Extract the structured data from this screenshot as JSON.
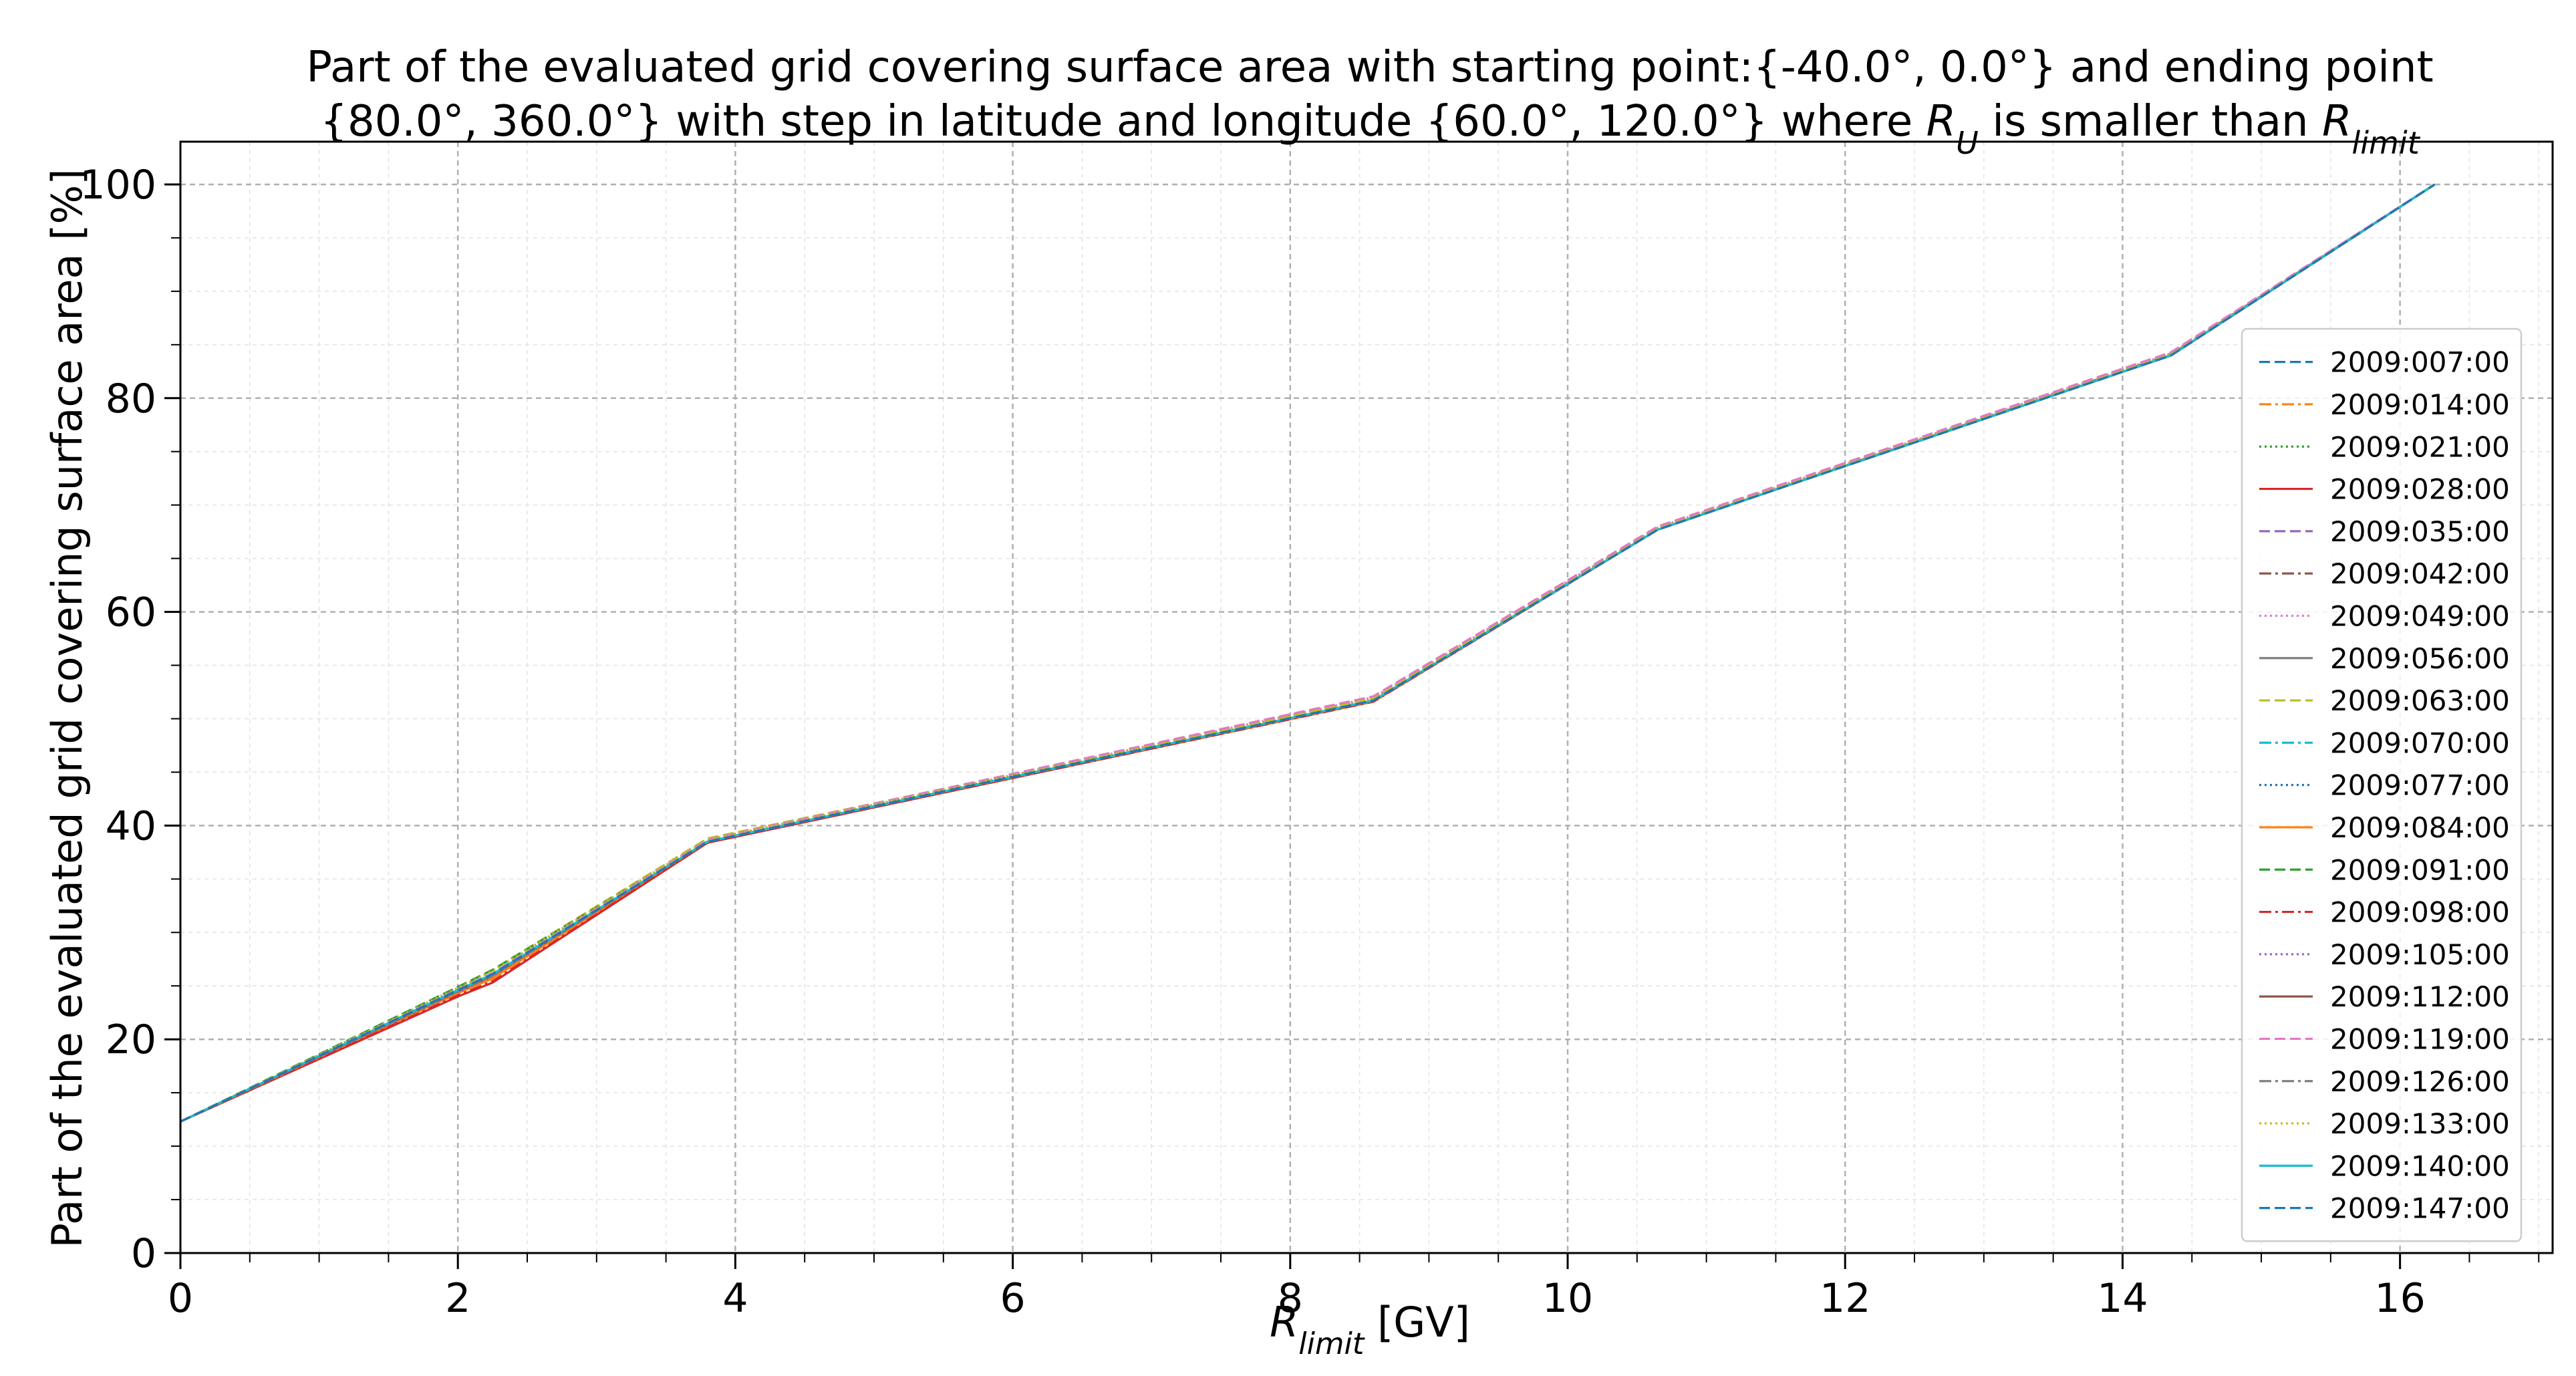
{
  "chart_data": {
    "type": "line",
    "title_lines": [
      "Part of the evaluated grid covering surface area with starting point:{-40.0°, 0.0°} and ending point",
      "{80.0°, 360.0°} with step in latitude and longitude {60.0°, 120.0°} where R_U is smaller than R_limit"
    ],
    "xlabel": "R_limit [GV]",
    "ylabel": "Part of the evaluated grid covering surface area  [%]",
    "xlim": [
      0,
      17.1
    ],
    "ylim": [
      0,
      104
    ],
    "xticks": [
      "0",
      "2",
      "4",
      "6",
      "8",
      "10",
      "12",
      "14",
      "16"
    ],
    "yticks": [
      "0",
      "20",
      "40",
      "60",
      "80",
      "100"
    ],
    "grid": true,
    "legend_position": "center-right",
    "series": [
      {
        "name": "2009:007:00",
        "color": "#1f77b4",
        "dash": "dashed",
        "x": [
          0,
          2.0,
          2.25,
          3.8,
          8.6,
          10.65,
          14.35,
          16.25
        ],
        "y": [
          12.3,
          24.6,
          26.2,
          38.6,
          51.8,
          67.8,
          84.2,
          100
        ]
      },
      {
        "name": "2009:014:00",
        "color": "#ff7f0e",
        "dash": "dashdot",
        "x": [
          0,
          2.0,
          2.25,
          3.8,
          8.6,
          10.65,
          14.35,
          16.25
        ],
        "y": [
          12.3,
          24.2,
          25.6,
          38.5,
          51.7,
          67.7,
          84.1,
          100
        ]
      },
      {
        "name": "2009:021:00",
        "color": "#2ca02c",
        "dash": "dotted",
        "x": [
          0,
          2.0,
          2.25,
          3.8,
          8.6,
          10.65,
          14.35,
          16.25
        ],
        "y": [
          12.3,
          24.8,
          26.4,
          38.6,
          51.8,
          67.8,
          84.1,
          100
        ]
      },
      {
        "name": "2009:028:00",
        "color": "#d62728",
        "dash": "solid",
        "x": [
          0,
          2.0,
          2.25,
          3.8,
          8.6,
          10.65,
          14.35,
          16.25
        ],
        "y": [
          12.3,
          24.0,
          25.3,
          38.4,
          51.6,
          67.7,
          84.0,
          100
        ]
      },
      {
        "name": "2009:035:00",
        "color": "#9467bd",
        "dash": "dashed",
        "x": [
          0,
          2.0,
          2.25,
          3.8,
          8.6,
          10.65,
          14.35,
          16.25
        ],
        "y": [
          12.3,
          24.5,
          26.0,
          38.6,
          51.9,
          67.9,
          84.2,
          100
        ]
      },
      {
        "name": "2009:042:00",
        "color": "#8c564b",
        "dash": "dashdot",
        "x": [
          0,
          2.0,
          2.25,
          3.8,
          8.6,
          10.65,
          14.35,
          16.25
        ],
        "y": [
          12.3,
          24.3,
          25.8,
          38.5,
          51.7,
          67.7,
          84.1,
          100
        ]
      },
      {
        "name": "2009:049:00",
        "color": "#e377c2",
        "dash": "dotted",
        "x": [
          0,
          2.0,
          2.25,
          3.8,
          8.6,
          10.65,
          14.35,
          16.25
        ],
        "y": [
          12.3,
          24.6,
          26.1,
          38.6,
          52.0,
          67.9,
          84.2,
          100
        ]
      },
      {
        "name": "2009:056:00",
        "color": "#7f7f7f",
        "dash": "solid",
        "x": [
          0,
          2.0,
          2.25,
          3.8,
          8.6,
          10.65,
          14.35,
          16.25
        ],
        "y": [
          12.3,
          24.4,
          25.9,
          38.5,
          51.7,
          67.7,
          84.0,
          100
        ]
      },
      {
        "name": "2009:063:00",
        "color": "#bcbd22",
        "dash": "dashed",
        "x": [
          0,
          2.0,
          2.25,
          3.8,
          8.6,
          10.65,
          14.35,
          16.25
        ],
        "y": [
          12.3,
          24.9,
          26.5,
          38.8,
          51.9,
          67.8,
          84.1,
          100
        ]
      },
      {
        "name": "2009:070:00",
        "color": "#17becf",
        "dash": "dashdot",
        "x": [
          0,
          2.0,
          2.25,
          3.8,
          8.6,
          10.65,
          14.35,
          16.25
        ],
        "y": [
          12.3,
          24.6,
          26.1,
          38.5,
          51.7,
          67.7,
          84.0,
          100
        ]
      },
      {
        "name": "2009:077:00",
        "color": "#1f77b4",
        "dash": "dotted",
        "x": [
          0,
          2.0,
          2.25,
          3.8,
          8.6,
          10.65,
          14.35,
          16.25
        ],
        "y": [
          12.3,
          24.5,
          26.0,
          38.5,
          51.7,
          67.7,
          84.0,
          100
        ]
      },
      {
        "name": "2009:084:00",
        "color": "#ff7f0e",
        "dash": "solid",
        "x": [
          0,
          2.0,
          2.25,
          3.8,
          8.6,
          10.65,
          14.35,
          16.25
        ],
        "y": [
          12.3,
          24.3,
          25.7,
          38.5,
          51.6,
          67.7,
          84.0,
          100
        ]
      },
      {
        "name": "2009:091:00",
        "color": "#2ca02c",
        "dash": "dashed",
        "x": [
          0,
          2.0,
          2.25,
          3.8,
          8.6,
          10.65,
          14.35,
          16.25
        ],
        "y": [
          12.3,
          24.9,
          26.5,
          38.6,
          51.7,
          67.7,
          84.0,
          100
        ]
      },
      {
        "name": "2009:098:00",
        "color": "#d62728",
        "dash": "dashdot",
        "x": [
          0,
          2.0,
          2.25,
          3.8,
          8.6,
          10.65,
          14.35,
          16.25
        ],
        "y": [
          12.3,
          24.1,
          25.4,
          38.4,
          51.6,
          67.7,
          84.0,
          100
        ]
      },
      {
        "name": "2009:105:00",
        "color": "#9467bd",
        "dash": "dotted",
        "x": [
          0,
          2.0,
          2.25,
          3.8,
          8.6,
          10.65,
          14.35,
          16.25
        ],
        "y": [
          12.3,
          24.4,
          25.9,
          38.5,
          51.7,
          67.8,
          84.1,
          100
        ]
      },
      {
        "name": "2009:112:00",
        "color": "#8c564b",
        "dash": "solid",
        "x": [
          0,
          2.0,
          2.25,
          3.8,
          8.6,
          10.65,
          14.35,
          16.25
        ],
        "y": [
          12.3,
          24.5,
          26.0,
          38.5,
          51.7,
          67.7,
          84.0,
          100
        ]
      },
      {
        "name": "2009:119:00",
        "color": "#e377c2",
        "dash": "dashed",
        "x": [
          0,
          2.0,
          2.25,
          3.8,
          8.6,
          10.65,
          14.35,
          16.25
        ],
        "y": [
          12.3,
          24.7,
          26.2,
          38.7,
          52.1,
          68.0,
          84.3,
          100
        ]
      },
      {
        "name": "2009:126:00",
        "color": "#7f7f7f",
        "dash": "dashdot",
        "x": [
          0,
          2.0,
          2.25,
          3.8,
          8.6,
          10.65,
          14.35,
          16.25
        ],
        "y": [
          12.3,
          24.5,
          26.0,
          38.5,
          51.7,
          67.7,
          84.0,
          100
        ]
      },
      {
        "name": "2009:133:00",
        "color": "#bcbd22",
        "dash": "dotted",
        "x": [
          0,
          2.0,
          2.25,
          3.8,
          8.6,
          10.65,
          14.35,
          16.25
        ],
        "y": [
          12.3,
          24.8,
          26.4,
          38.7,
          51.8,
          67.8,
          84.1,
          100
        ]
      },
      {
        "name": "2009:140:00",
        "color": "#17becf",
        "dash": "solid",
        "x": [
          0,
          2.0,
          2.25,
          3.8,
          8.6,
          10.65,
          14.35,
          16.25
        ],
        "y": [
          12.3,
          24.6,
          26.1,
          38.5,
          51.7,
          67.7,
          84.0,
          100
        ]
      },
      {
        "name": "2009:147:00",
        "color": "#1f77b4",
        "dash": "dashed",
        "x": [
          0,
          2.0,
          2.25,
          3.8,
          8.6,
          10.65,
          14.35,
          16.25
        ],
        "y": [
          12.3,
          24.6,
          26.1,
          38.5,
          51.7,
          67.7,
          84.0,
          100
        ]
      }
    ]
  }
}
